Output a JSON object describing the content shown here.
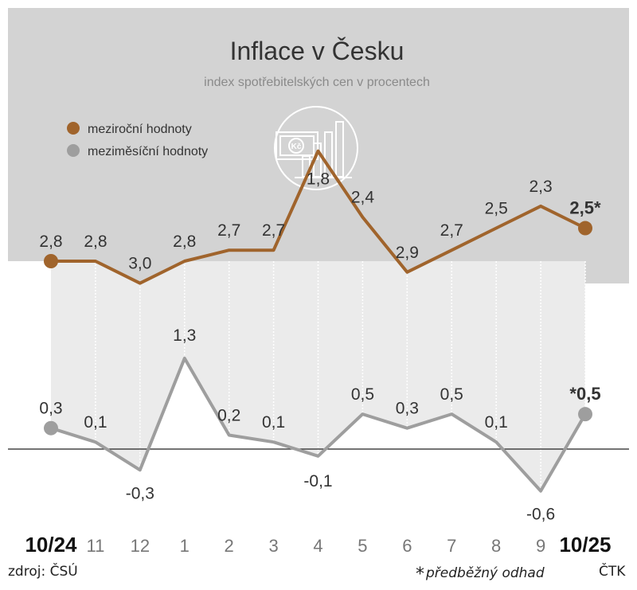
{
  "chart_data": {
    "type": "line",
    "title": "Inflace v Česku",
    "subtitle": "index spotřebitelských cen v procentech",
    "categories": [
      "10/24",
      "11",
      "12",
      "1",
      "2",
      "3",
      "4",
      "5",
      "6",
      "7",
      "8",
      "9",
      "10/25"
    ],
    "series": [
      {
        "name": "meziroční hodnoty",
        "color": "#a0642c",
        "values": [
          2.8,
          2.8,
          3.0,
          2.8,
          2.7,
          2.7,
          1.8,
          2.4,
          2.9,
          2.7,
          2.5,
          2.3,
          2.5
        ],
        "labels": [
          "2,8",
          "2,8",
          "3,0",
          "2,8",
          "2,7",
          "2,7",
          "1,8",
          "2,4",
          "2,9",
          "2,7",
          "2,5",
          "2,3",
          "2,5*"
        ]
      },
      {
        "name": "meziměsíční hodnoty",
        "color": "#9e9e9e",
        "values": [
          0.3,
          0.1,
          -0.3,
          1.3,
          0.2,
          0.1,
          -0.1,
          0.5,
          0.3,
          0.5,
          0.1,
          -0.6,
          0.5
        ],
        "labels": [
          "0,3",
          "0,1",
          "-0,3",
          "1,3",
          "0,2",
          "0,1",
          "-0,1",
          "0,5",
          "0,3",
          "0,5",
          "0,1",
          "-0,6",
          "*0,5"
        ]
      }
    ],
    "legend_position": "top-left",
    "grid": "vertical",
    "zero_line": true
  },
  "footer": {
    "source": "zdroj: ČSÚ",
    "note_star": "*",
    "note": "předběžný odhad",
    "agency": "ČTK"
  }
}
